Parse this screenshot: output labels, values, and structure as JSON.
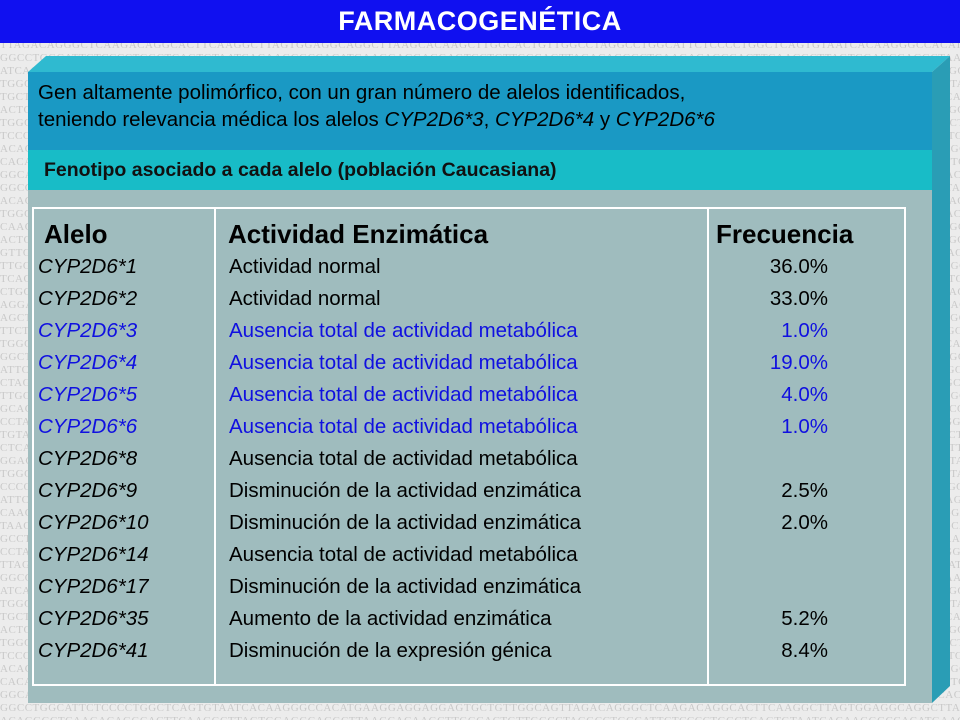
{
  "header": {
    "title": "FARMACOGENÉTICA"
  },
  "intro": {
    "line1": "Gen altamente polimórfico, con un gran número de alelos identificados,",
    "line2_pre": "teniendo relevancia médica los alelos ",
    "allele_a": "CYP2D6*3",
    "sep1": ", ",
    "allele_b": "CYP2D6*4",
    "sep2": " y ",
    "allele_c": "CYP2D6*6"
  },
  "subtitle": "Fenotipo asociado a cada alelo (población Caucasiana)",
  "table": {
    "headers": {
      "allele": "Alelo",
      "activity": "Actividad Enzimática",
      "frequency": "Frecuencia"
    },
    "rows": [
      {
        "allele": "CYP2D6*1",
        "activity": "Actividad normal",
        "frequency": "36.0%",
        "highlight": false
      },
      {
        "allele": "CYP2D6*2",
        "activity": "Actividad normal",
        "frequency": "33.0%",
        "highlight": false
      },
      {
        "allele": "CYP2D6*3",
        "activity": "Ausencia total de actividad metabólica",
        "frequency": "1.0%",
        "highlight": true
      },
      {
        "allele": "CYP2D6*4",
        "activity": "Ausencia total de actividad metabólica",
        "frequency": "19.0%",
        "highlight": true
      },
      {
        "allele": "CYP2D6*5",
        "activity": "Ausencia total de actividad metabólica",
        "frequency": "4.0%",
        "highlight": true
      },
      {
        "allele": "CYP2D6*6",
        "activity": "Ausencia total de actividad metabólica",
        "frequency": "1.0%",
        "highlight": true
      },
      {
        "allele": "CYP2D6*8",
        "activity": "Ausencia total de actividad metabólica",
        "frequency": "",
        "highlight": false
      },
      {
        "allele": "CYP2D6*9",
        "activity": "Disminución de la actividad enzimática",
        "frequency": "2.5%",
        "highlight": false
      },
      {
        "allele": "CYP2D6*10",
        "activity": "Disminución de la actividad enzimática",
        "frequency": "2.0%",
        "highlight": false
      },
      {
        "allele": "CYP2D6*14",
        "activity": "Ausencia total de actividad metabólica",
        "frequency": "",
        "highlight": false
      },
      {
        "allele": "CYP2D6*17",
        "activity": "Disminución de la actividad enzimática",
        "frequency": "",
        "highlight": false
      },
      {
        "allele": "CYP2D6*35",
        "activity": "Aumento de la actividad enzimática",
        "frequency": "5.2%",
        "highlight": false
      },
      {
        "allele": "CYP2D6*41",
        "activity": "Disminución de la expresión génica",
        "frequency": "8.4%",
        "highlight": false
      }
    ]
  },
  "background_dna": [
    "TAAGCACAAGCTTGGCACTGTTGGCCTAGGCCTGGCATTCTCCCCTGGCTCAGTGTAATCACAAGGGCCACATGAAGGAGGAGGAGTGCTGTTGGCAGTTAGACAGGGCTCAAGACAGGCACTTCAAGGCTTAGTGGAGGCAGGC",
    "GGCCTAGGCCTGGCATTCTCCCCTGGCTCAGTGTAATCACAAGGGCCACATGAAGGAGGAGGAGTGCTGTTGGCAGTTAGACAGGGCTCAAGACAGGCACTTCAAGGCTTAGTGGAGGCAGGCTTAAGCACAAGCTTGGCACTGTT",
    "CTTGGCACTGTTGGCCTAGGCCTGGCATTCTCCCCTGGCTCAGTGTAATCACAAGGGCCACATGAAGGAGGAGGAGTGCTGTTGGCAGTTAGACAGGGCTCAAGACAGGCACTTCAAGGCTTAGTGGAGGCAGGCTTAAGCACAAG",
    "GAGGAGGAGTGCTGTTGGCAGTTAGACAGGGCTCAAGACAGGCACTTCAAGGCTTAGTGGAGGCAGGCTTAAGCACAAGCTTGGCACTGTTGGCCTAGGCCTGGCATTCTCCCCTGGCTCAGTGTAATCACAAGGGCCACATGAAG"
  ]
}
